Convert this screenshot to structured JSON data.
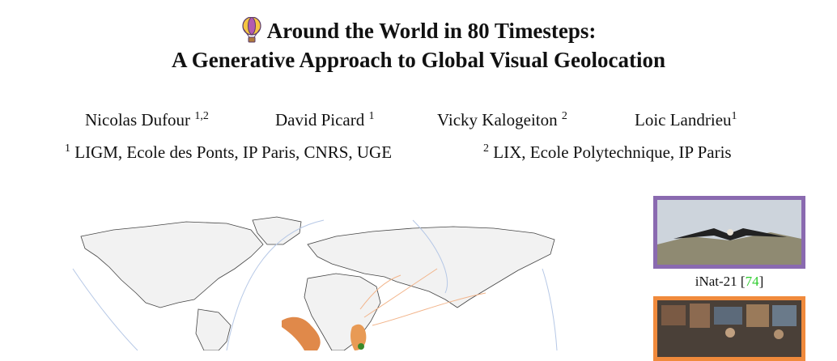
{
  "title": {
    "line1": "Around the World in 80 Timesteps:",
    "line2": "A Generative Approach to Global Visual Geolocation"
  },
  "authors": [
    {
      "name": "Nicolas Dufour",
      "sup": "1,2"
    },
    {
      "name": "David Picard",
      "sup": "1"
    },
    {
      "name": "Vicky Kalogeiton",
      "sup": "2"
    },
    {
      "name": "Loic Landrieu",
      "sup": "1"
    }
  ],
  "affiliations": [
    {
      "sup": "1",
      "name": "LIGM, Ecole des Ponts, IP Paris, CNRS, UGE"
    },
    {
      "sup": "2",
      "name": "LIX, Ecole Polytechnique, IP Paris"
    }
  ],
  "figure": {
    "caption_dataset": "iNat-21",
    "caption_ref_open": "[",
    "caption_ref": "74",
    "caption_ref_close": "]"
  },
  "colors": {
    "frame_inat": "#8a6ab0",
    "frame_second": "#f08a3c",
    "citation": "#2ecc2e",
    "flow_blue": "#b6c8e6",
    "flow_orange": "#f2b48a"
  },
  "icons": [
    "hot-air-balloon-icon"
  ]
}
